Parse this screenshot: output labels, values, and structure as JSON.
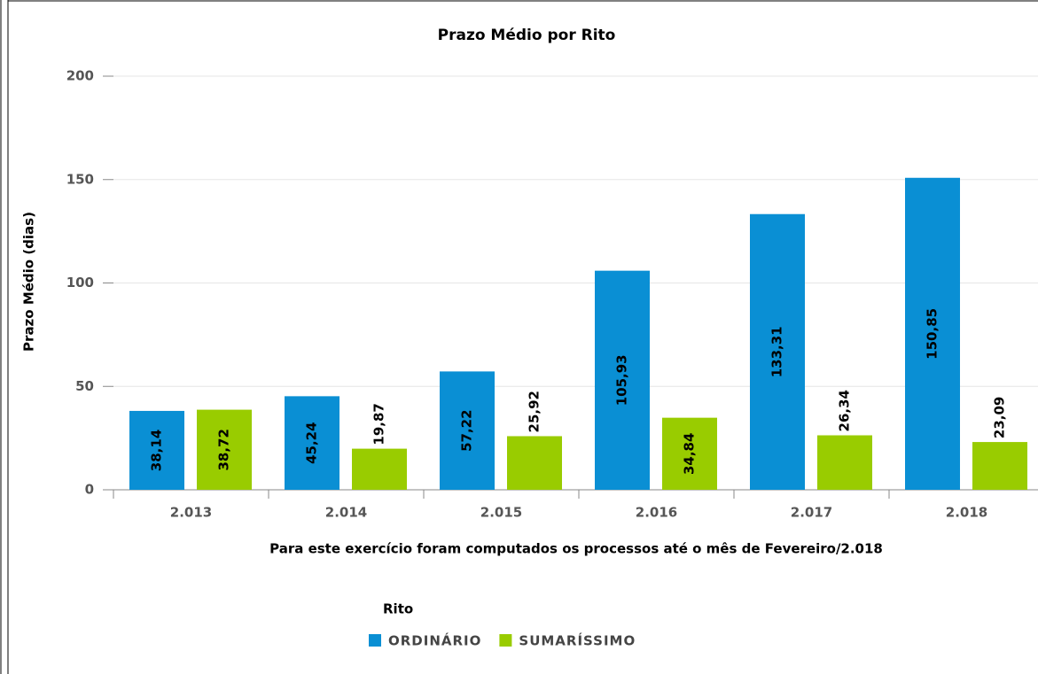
{
  "chart_data": {
    "type": "bar",
    "title": "Prazo Médio por Rito",
    "y_axis_label": "Prazo Médio (dias)",
    "x_axis_label": "Para este exercício foram computados os processos até o mês de Fevereiro/2.018",
    "legend_title": "Rito",
    "categories": [
      "2.013",
      "2.014",
      "2.015",
      "2.016",
      "2.017",
      "2.018"
    ],
    "series": [
      {
        "name": "ORDINÁRIO",
        "color": "#0a8fd4",
        "values": [
          38.14,
          45.24,
          57.22,
          105.93,
          133.31,
          150.85
        ],
        "value_labels": [
          "38,14",
          "45,24",
          "57,22",
          "105,93",
          "133,31",
          "150,85"
        ]
      },
      {
        "name": "SUMARÍSSIMO",
        "color": "#99cc00",
        "values": [
          38.72,
          19.87,
          25.92,
          34.84,
          26.34,
          23.09
        ],
        "value_labels": [
          "38,72",
          "19,87",
          "25,92",
          "34,84",
          "26,34",
          "23,09"
        ]
      }
    ],
    "ylim": [
      0,
      200
    ],
    "yticks": [
      0,
      50,
      100,
      150,
      200
    ],
    "grid": true
  }
}
